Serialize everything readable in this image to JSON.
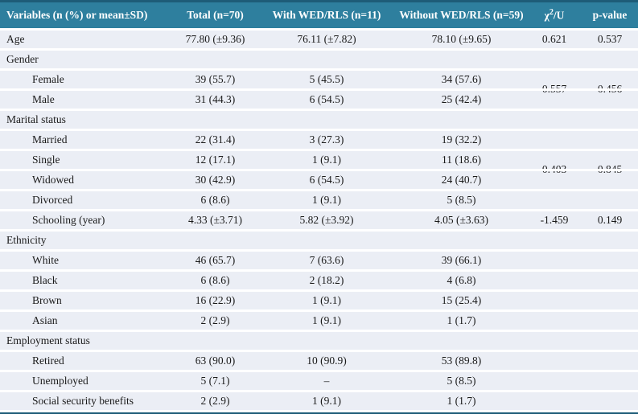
{
  "colors": {
    "header_background": "#2e7f9e",
    "header_text": "#ffffff",
    "top_border": "#1e5c78",
    "bottom_border": "#1e5c78",
    "row_background": "#ebeef5",
    "row_separator": "#ffffff",
    "body_text": "#1a1a1a"
  },
  "table": {
    "header": {
      "variables": "Variables (n (%) or mean±SD)",
      "total": "Total (n=70)",
      "with_wed": "With WED/RLS (n=11)",
      "without_wed": "Without WED/RLS (n=59)",
      "chi_base": "χ",
      "chi_sup": "2",
      "chi_rest": "/U",
      "p_value": "p-value"
    },
    "rows": [
      {
        "type": "data",
        "indent": false,
        "label": "Age",
        "total": "77.80 (±9.36)",
        "with_wed": "76.11 (±7.82)",
        "without_wed": "78.10 (±9.65)",
        "chi": "0.621",
        "p": "0.537"
      },
      {
        "type": "section",
        "indent": false,
        "label": "Gender",
        "total": "",
        "with_wed": "",
        "without_wed": "",
        "chi": "",
        "p": ""
      },
      {
        "type": "data",
        "indent": true,
        "label": "Female",
        "total": "39 (55.7)",
        "with_wed": "5 (45.5)",
        "without_wed": "34 (57.6)",
        "chi": "",
        "p": ""
      },
      {
        "type": "data",
        "indent": true,
        "label": "Male",
        "total": "31 (44.3)",
        "with_wed": "6 (54.5)",
        "without_wed": "25 (42.4)",
        "chi": "",
        "p": ""
      },
      {
        "type": "section",
        "indent": false,
        "label": "Marital status",
        "total": "",
        "with_wed": "",
        "without_wed": "",
        "chi": "",
        "p": ""
      },
      {
        "type": "data",
        "indent": true,
        "label": "Married",
        "total": "22 (31.4)",
        "with_wed": "3 (27.3)",
        "without_wed": "19 (32.2)",
        "chi": "",
        "p": ""
      },
      {
        "type": "data",
        "indent": true,
        "label": "Single",
        "total": "12 (17.1)",
        "with_wed": "1 (9.1)",
        "without_wed": "11 (18.6)",
        "chi": "",
        "p": ""
      },
      {
        "type": "data",
        "indent": true,
        "label": "Widowed",
        "total": "30 (42.9)",
        "with_wed": "6 (54.5)",
        "without_wed": "24 (40.7)",
        "chi": "",
        "p": ""
      },
      {
        "type": "data",
        "indent": true,
        "label": "Divorced",
        "total": "6 (8.6)",
        "with_wed": "1 (9.1)",
        "without_wed": "5 (8.5)",
        "chi": "",
        "p": ""
      },
      {
        "type": "data",
        "indent": true,
        "label": "Schooling (year)",
        "total": "4.33 (±3.71)",
        "with_wed": "5.82 (±3.92)",
        "without_wed": "4.05 (±3.63)",
        "chi": "-1.459",
        "p": "0.149"
      },
      {
        "type": "section",
        "indent": false,
        "label": "Ethnicity",
        "total": "",
        "with_wed": "",
        "without_wed": "",
        "chi": "",
        "p": ""
      },
      {
        "type": "data",
        "indent": true,
        "label": "White",
        "total": "46 (65.7)",
        "with_wed": "7 (63.6)",
        "without_wed": "39 (66.1)",
        "chi": "",
        "p": ""
      },
      {
        "type": "data",
        "indent": true,
        "label": "Black",
        "total": "6 (8.6)",
        "with_wed": "2 (18.2)",
        "without_wed": "4 (6.8)",
        "chi": "",
        "p": ""
      },
      {
        "type": "data",
        "indent": true,
        "label": "Brown",
        "total": "16 (22.9)",
        "with_wed": "1 (9.1)",
        "without_wed": "15 (25.4)",
        "chi": "",
        "p": ""
      },
      {
        "type": "data",
        "indent": true,
        "label": "Asian",
        "total": "2 (2.9)",
        "with_wed": "1 (9.1)",
        "without_wed": "1 (1.7)",
        "chi": "",
        "p": ""
      },
      {
        "type": "section",
        "indent": false,
        "label": "Employment status",
        "total": "",
        "with_wed": "",
        "without_wed": "",
        "chi": "",
        "p": ""
      },
      {
        "type": "data",
        "indent": true,
        "label": "Retired",
        "total": "63 (90.0)",
        "with_wed": "10 (90.9)",
        "without_wed": "53 (89.8)",
        "chi": "",
        "p": ""
      },
      {
        "type": "data",
        "indent": true,
        "label": "Unemployed",
        "total": "5 (7.1)",
        "with_wed": "–",
        "without_wed": "5 (8.5)",
        "chi": "",
        "p": ""
      },
      {
        "type": "data",
        "indent": true,
        "label": "Social security benefits",
        "total": "2 (2.9)",
        "with_wed": "1 (9.1)",
        "without_wed": "1 (1.7)",
        "chi": "",
        "p": ""
      }
    ],
    "span_values": [
      {
        "group": "Gender",
        "chi": "0.557",
        "p": "0.456",
        "clipped": true
      },
      {
        "group": "Marital status",
        "chi": "0.403",
        "p": "0.845",
        "clipped": true
      },
      {
        "group": "Ethnicity",
        "chi": "–",
        "p": "–",
        "clipped": true
      }
    ]
  }
}
